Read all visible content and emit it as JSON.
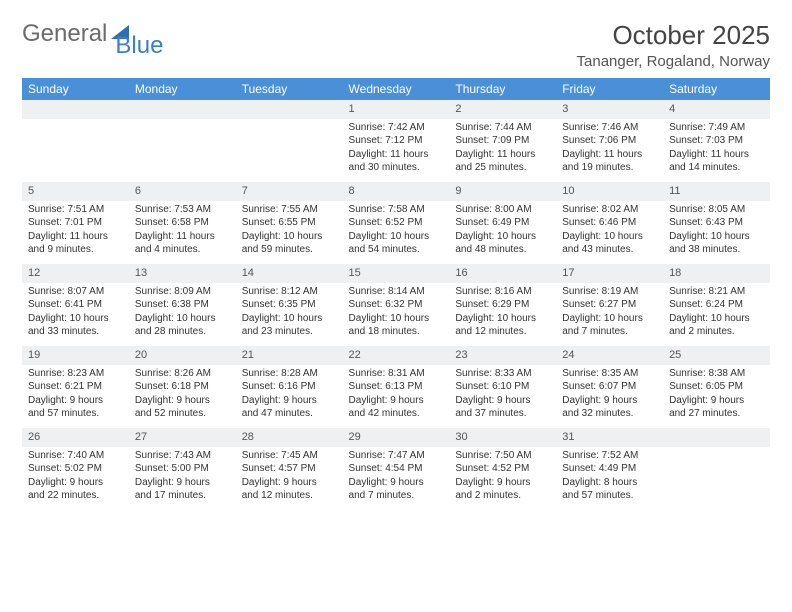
{
  "logo": {
    "part1": "General",
    "part2": "Blue"
  },
  "title": "October 2025",
  "location": "Tananger, Rogaland, Norway",
  "header_bg": "#4a90d9",
  "header_fg": "#ffffff",
  "rule_color": "#3a6fa8",
  "daynum_bg": "#eef0f2",
  "weekdays": [
    "Sunday",
    "Monday",
    "Tuesday",
    "Wednesday",
    "Thursday",
    "Friday",
    "Saturday"
  ],
  "weeks": [
    [
      {
        "n": "",
        "sr": "",
        "ss": "",
        "d1": "",
        "d2": ""
      },
      {
        "n": "",
        "sr": "",
        "ss": "",
        "d1": "",
        "d2": ""
      },
      {
        "n": "",
        "sr": "",
        "ss": "",
        "d1": "",
        "d2": ""
      },
      {
        "n": "1",
        "sr": "Sunrise: 7:42 AM",
        "ss": "Sunset: 7:12 PM",
        "d1": "Daylight: 11 hours",
        "d2": "and 30 minutes."
      },
      {
        "n": "2",
        "sr": "Sunrise: 7:44 AM",
        "ss": "Sunset: 7:09 PM",
        "d1": "Daylight: 11 hours",
        "d2": "and 25 minutes."
      },
      {
        "n": "3",
        "sr": "Sunrise: 7:46 AM",
        "ss": "Sunset: 7:06 PM",
        "d1": "Daylight: 11 hours",
        "d2": "and 19 minutes."
      },
      {
        "n": "4",
        "sr": "Sunrise: 7:49 AM",
        "ss": "Sunset: 7:03 PM",
        "d1": "Daylight: 11 hours",
        "d2": "and 14 minutes."
      }
    ],
    [
      {
        "n": "5",
        "sr": "Sunrise: 7:51 AM",
        "ss": "Sunset: 7:01 PM",
        "d1": "Daylight: 11 hours",
        "d2": "and 9 minutes."
      },
      {
        "n": "6",
        "sr": "Sunrise: 7:53 AM",
        "ss": "Sunset: 6:58 PM",
        "d1": "Daylight: 11 hours",
        "d2": "and 4 minutes."
      },
      {
        "n": "7",
        "sr": "Sunrise: 7:55 AM",
        "ss": "Sunset: 6:55 PM",
        "d1": "Daylight: 10 hours",
        "d2": "and 59 minutes."
      },
      {
        "n": "8",
        "sr": "Sunrise: 7:58 AM",
        "ss": "Sunset: 6:52 PM",
        "d1": "Daylight: 10 hours",
        "d2": "and 54 minutes."
      },
      {
        "n": "9",
        "sr": "Sunrise: 8:00 AM",
        "ss": "Sunset: 6:49 PM",
        "d1": "Daylight: 10 hours",
        "d2": "and 48 minutes."
      },
      {
        "n": "10",
        "sr": "Sunrise: 8:02 AM",
        "ss": "Sunset: 6:46 PM",
        "d1": "Daylight: 10 hours",
        "d2": "and 43 minutes."
      },
      {
        "n": "11",
        "sr": "Sunrise: 8:05 AM",
        "ss": "Sunset: 6:43 PM",
        "d1": "Daylight: 10 hours",
        "d2": "and 38 minutes."
      }
    ],
    [
      {
        "n": "12",
        "sr": "Sunrise: 8:07 AM",
        "ss": "Sunset: 6:41 PM",
        "d1": "Daylight: 10 hours",
        "d2": "and 33 minutes."
      },
      {
        "n": "13",
        "sr": "Sunrise: 8:09 AM",
        "ss": "Sunset: 6:38 PM",
        "d1": "Daylight: 10 hours",
        "d2": "and 28 minutes."
      },
      {
        "n": "14",
        "sr": "Sunrise: 8:12 AM",
        "ss": "Sunset: 6:35 PM",
        "d1": "Daylight: 10 hours",
        "d2": "and 23 minutes."
      },
      {
        "n": "15",
        "sr": "Sunrise: 8:14 AM",
        "ss": "Sunset: 6:32 PM",
        "d1": "Daylight: 10 hours",
        "d2": "and 18 minutes."
      },
      {
        "n": "16",
        "sr": "Sunrise: 8:16 AM",
        "ss": "Sunset: 6:29 PM",
        "d1": "Daylight: 10 hours",
        "d2": "and 12 minutes."
      },
      {
        "n": "17",
        "sr": "Sunrise: 8:19 AM",
        "ss": "Sunset: 6:27 PM",
        "d1": "Daylight: 10 hours",
        "d2": "and 7 minutes."
      },
      {
        "n": "18",
        "sr": "Sunrise: 8:21 AM",
        "ss": "Sunset: 6:24 PM",
        "d1": "Daylight: 10 hours",
        "d2": "and 2 minutes."
      }
    ],
    [
      {
        "n": "19",
        "sr": "Sunrise: 8:23 AM",
        "ss": "Sunset: 6:21 PM",
        "d1": "Daylight: 9 hours",
        "d2": "and 57 minutes."
      },
      {
        "n": "20",
        "sr": "Sunrise: 8:26 AM",
        "ss": "Sunset: 6:18 PM",
        "d1": "Daylight: 9 hours",
        "d2": "and 52 minutes."
      },
      {
        "n": "21",
        "sr": "Sunrise: 8:28 AM",
        "ss": "Sunset: 6:16 PM",
        "d1": "Daylight: 9 hours",
        "d2": "and 47 minutes."
      },
      {
        "n": "22",
        "sr": "Sunrise: 8:31 AM",
        "ss": "Sunset: 6:13 PM",
        "d1": "Daylight: 9 hours",
        "d2": "and 42 minutes."
      },
      {
        "n": "23",
        "sr": "Sunrise: 8:33 AM",
        "ss": "Sunset: 6:10 PM",
        "d1": "Daylight: 9 hours",
        "d2": "and 37 minutes."
      },
      {
        "n": "24",
        "sr": "Sunrise: 8:35 AM",
        "ss": "Sunset: 6:07 PM",
        "d1": "Daylight: 9 hours",
        "d2": "and 32 minutes."
      },
      {
        "n": "25",
        "sr": "Sunrise: 8:38 AM",
        "ss": "Sunset: 6:05 PM",
        "d1": "Daylight: 9 hours",
        "d2": "and 27 minutes."
      }
    ],
    [
      {
        "n": "26",
        "sr": "Sunrise: 7:40 AM",
        "ss": "Sunset: 5:02 PM",
        "d1": "Daylight: 9 hours",
        "d2": "and 22 minutes."
      },
      {
        "n": "27",
        "sr": "Sunrise: 7:43 AM",
        "ss": "Sunset: 5:00 PM",
        "d1": "Daylight: 9 hours",
        "d2": "and 17 minutes."
      },
      {
        "n": "28",
        "sr": "Sunrise: 7:45 AM",
        "ss": "Sunset: 4:57 PM",
        "d1": "Daylight: 9 hours",
        "d2": "and 12 minutes."
      },
      {
        "n": "29",
        "sr": "Sunrise: 7:47 AM",
        "ss": "Sunset: 4:54 PM",
        "d1": "Daylight: 9 hours",
        "d2": "and 7 minutes."
      },
      {
        "n": "30",
        "sr": "Sunrise: 7:50 AM",
        "ss": "Sunset: 4:52 PM",
        "d1": "Daylight: 9 hours",
        "d2": "and 2 minutes."
      },
      {
        "n": "31",
        "sr": "Sunrise: 7:52 AM",
        "ss": "Sunset: 4:49 PM",
        "d1": "Daylight: 8 hours",
        "d2": "and 57 minutes."
      },
      {
        "n": "",
        "sr": "",
        "ss": "",
        "d1": "",
        "d2": ""
      }
    ]
  ]
}
